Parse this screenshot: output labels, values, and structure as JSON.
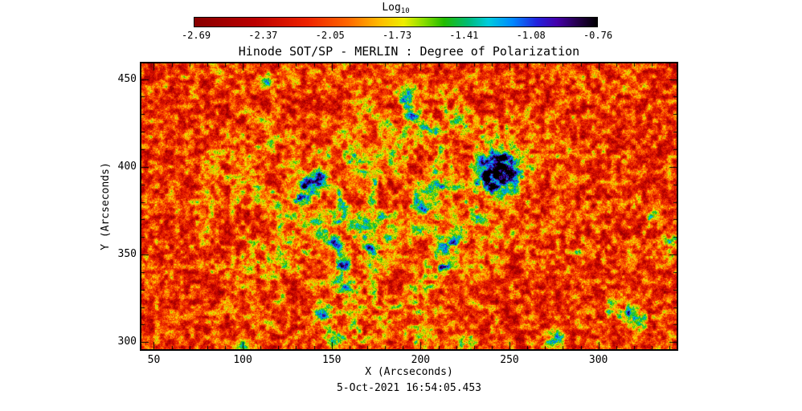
{
  "chart_data": {
    "type": "heatmap",
    "title": "Hinode SOT/SP - MERLIN : Degree of Polarization",
    "xlabel": "X (Arcseconds)",
    "ylabel": "Y (Arcseconds)",
    "timestamp": "5-Oct-2021 16:54:05.453",
    "colorbar": {
      "label_base": "Log",
      "label_sub": "10",
      "tick_labels": [
        "-2.69",
        "-2.37",
        "-2.05",
        "-1.73",
        "-1.41",
        "-1.08",
        "-0.76"
      ],
      "value_min": -2.69,
      "value_max": -0.76,
      "orientation": "horizontal",
      "position": "top"
    },
    "x_range_arcsec": [
      43,
      344
    ],
    "y_range_arcsec": [
      296,
      459
    ],
    "x_tick_values": [
      50,
      100,
      150,
      200,
      250,
      300
    ],
    "y_tick_values": [
      300,
      350,
      400,
      450
    ],
    "minor_tick_step_arcsec": 10,
    "colormap_stops": [
      [
        0.0,
        "#880000"
      ],
      [
        0.15,
        "#bb0000"
      ],
      [
        0.28,
        "#ee2200"
      ],
      [
        0.38,
        "#ff6600"
      ],
      [
        0.46,
        "#ffbb00"
      ],
      [
        0.52,
        "#eeee00"
      ],
      [
        0.57,
        "#88dd00"
      ],
      [
        0.62,
        "#22bb00"
      ],
      [
        0.68,
        "#00bb77"
      ],
      [
        0.73,
        "#00ccdd"
      ],
      [
        0.79,
        "#0088ff"
      ],
      [
        0.85,
        "#2222dd"
      ],
      [
        0.9,
        "#4400aa"
      ],
      [
        0.95,
        "#26004d"
      ],
      [
        1.0,
        "#000000"
      ]
    ],
    "description": "Speckled quiet-sun background near log10 polarization -2.5 (red/orange) with a web of magnetic network patches at higher polarization (green/cyan/blue) and a dark pore of strongest polarization (purple/black) near x=245, y=398 arcsec.",
    "network_region": {
      "center_arcsec": [
        168,
        378
      ],
      "extent_sigma_arcsec": [
        78,
        62
      ],
      "base": 0.2,
      "amp": 0.95
    },
    "polarization_features": [
      [
        244,
        397,
        10,
        0.55
      ],
      [
        244,
        397,
        17,
        0.18
      ],
      [
        247,
        405,
        3.5,
        0.5
      ],
      [
        238,
        391,
        5,
        0.3
      ],
      [
        251,
        394,
        4,
        0.25
      ],
      [
        137,
        389,
        6,
        0.42
      ],
      [
        132,
        382,
        4,
        0.35
      ],
      [
        143,
        395,
        4,
        0.3
      ],
      [
        152,
        357,
        4,
        0.3
      ],
      [
        156,
        344,
        5,
        0.38
      ],
      [
        159,
        330,
        5,
        0.4
      ],
      [
        146,
        317,
        5,
        0.38
      ],
      [
        151,
        303,
        5,
        0.4
      ],
      [
        163,
        310,
        4,
        0.3
      ],
      [
        171,
        352,
        4,
        0.28
      ],
      [
        190,
        441,
        5,
        0.4
      ],
      [
        196,
        431,
        5,
        0.35
      ],
      [
        114,
        450,
        4,
        0.33
      ],
      [
        205,
        420,
        4,
        0.3
      ],
      [
        199,
        303,
        4,
        0.32
      ],
      [
        224,
        298,
        5,
        0.35
      ],
      [
        216,
        356,
        5,
        0.35
      ],
      [
        213,
        343,
        4,
        0.32
      ],
      [
        222,
        425,
        4,
        0.33
      ],
      [
        237,
        404,
        3,
        0.28
      ],
      [
        275,
        303,
        5,
        0.33
      ],
      [
        316,
        316,
        6,
        0.38
      ],
      [
        324,
        311,
        5,
        0.35
      ],
      [
        306,
        320,
        4,
        0.3
      ],
      [
        330,
        371,
        4,
        0.32
      ],
      [
        341,
        357,
        4,
        0.3
      ],
      [
        210,
        388,
        5,
        0.28
      ],
      [
        203,
        378,
        4,
        0.26
      ],
      [
        232,
        370,
        4,
        0.25
      ],
      [
        99,
        298,
        4,
        0.25
      ],
      [
        260,
        430,
        3,
        0.2
      ],
      [
        288,
        352,
        3,
        0.2
      ]
    ]
  }
}
